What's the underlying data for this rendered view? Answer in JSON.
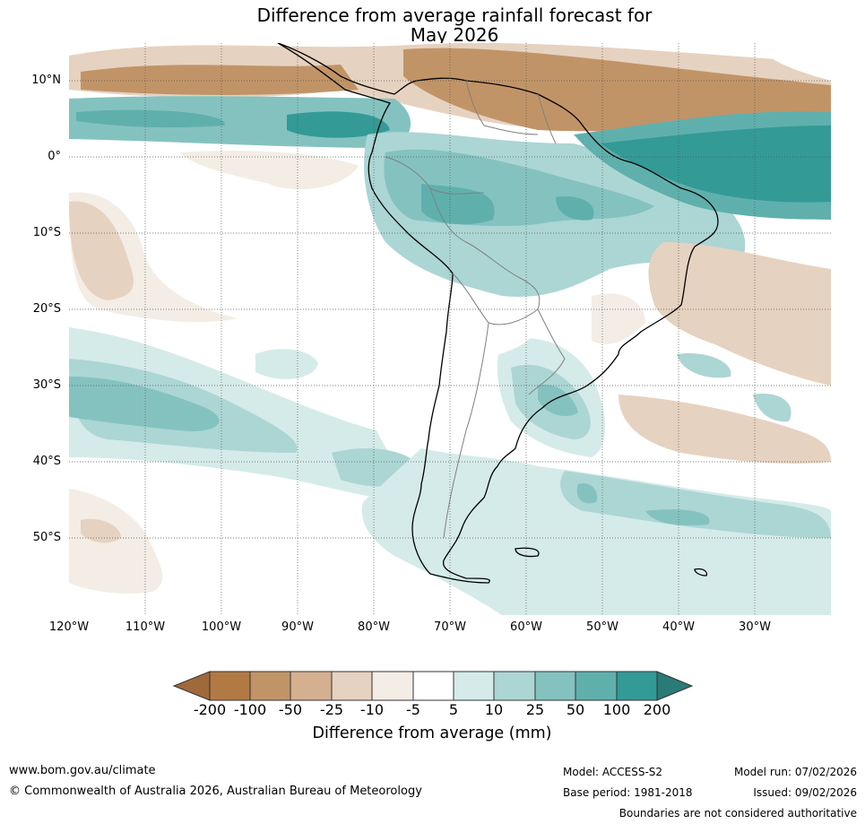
{
  "title": {
    "line1": "Difference from average rainfall forecast for",
    "line2": "May 2026"
  },
  "map": {
    "region": "South America",
    "lat_range": [
      -60,
      15
    ],
    "lon_range": [
      -120,
      -20
    ],
    "lat_ticks": [
      "10°N",
      "0°",
      "10°S",
      "20°S",
      "30°S",
      "40°S",
      "50°S"
    ],
    "lon_ticks": [
      "120°W",
      "110°W",
      "100°W",
      "90°W",
      "80°W",
      "70°W",
      "60°W",
      "50°W",
      "40°W",
      "30°W"
    ]
  },
  "colorbar": {
    "title": "Difference from average (mm)",
    "labels": [
      "-200",
      "-100",
      "-50",
      "-25",
      "-10",
      "-5",
      "5",
      "10",
      "25",
      "50",
      "100",
      "200"
    ],
    "colors": [
      "#a0693a",
      "#b17a43",
      "#c19467",
      "#d4b090",
      "#e6d2c0",
      "#f3ede6",
      "#ffffff",
      "#d5ebe9",
      "#abd6d4",
      "#84c2c0",
      "#5fb0ad",
      "#339a96",
      "#2a7a77"
    ]
  },
  "footer": {
    "website": "www.bom.gov.au/climate",
    "copyright": "© Commonwealth of Australia 2026, Australian Bureau of Meteorology",
    "model": "Model: ACCESS-S2",
    "base_period": "Base period: 1981-2018",
    "model_run": "Model run: 07/02/2026",
    "issued": "Issued: 09/02/2026",
    "disclaimer": "Boundaries are not considered authoritative"
  }
}
